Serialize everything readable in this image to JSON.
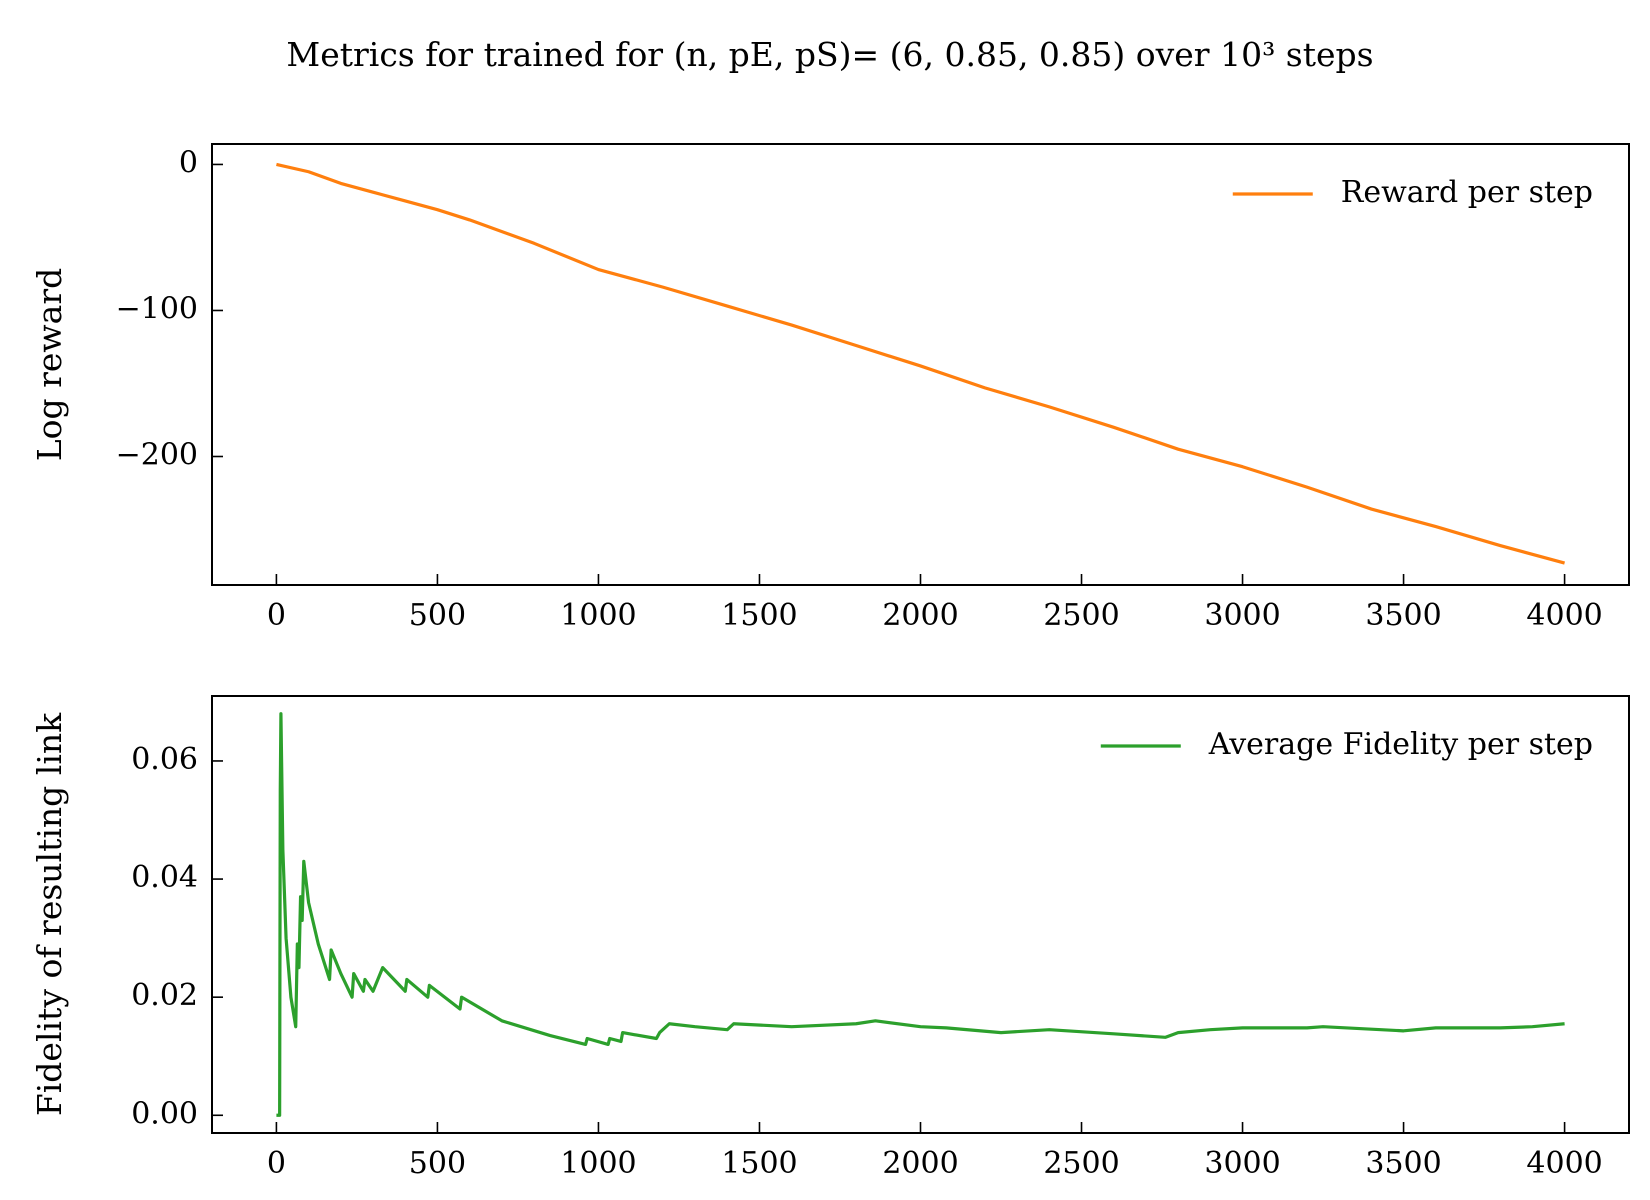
{
  "title": "Metrics for trained for (n, pE, pS)= (6, 0.85, 0.85) over 10³ steps",
  "chart_data": [
    {
      "type": "line",
      "ylabel": "Log reward",
      "legend": "upper right",
      "x": [
        0,
        100,
        200,
        300,
        400,
        500,
        600,
        800,
        1000,
        1200,
        1400,
        1600,
        1800,
        2000,
        2200,
        2400,
        2600,
        2800,
        3000,
        3200,
        3400,
        3600,
        3800,
        4000
      ],
      "series": [
        {
          "name": "Reward per step",
          "color": "#ff7f0e",
          "values": [
            0,
            -5,
            -13,
            -19,
            -25,
            -31,
            -38,
            -54,
            -72,
            -84,
            -97,
            -110,
            -124,
            -138,
            -153,
            -166,
            -180,
            -195,
            -207,
            -221,
            -236,
            -248,
            -261,
            -273
          ]
        }
      ],
      "xlim": [
        -200,
        4200
      ],
      "xticks": [
        0,
        500,
        1000,
        1500,
        2000,
        2500,
        3000,
        3500,
        4000
      ],
      "ylim": [
        -288,
        14
      ],
      "yticks": [
        {
          "value": 0,
          "label": "0"
        },
        {
          "value": -100,
          "label": "−100"
        },
        {
          "value": -200,
          "label": "−200"
        }
      ]
    },
    {
      "type": "line",
      "ylabel": "Fidelity of resulting link",
      "legend": "upper right",
      "x": [
        0,
        10,
        12,
        14,
        20,
        30,
        45,
        60,
        65,
        70,
        75,
        80,
        85,
        100,
        130,
        165,
        170,
        200,
        235,
        240,
        270,
        275,
        300,
        330,
        400,
        405,
        470,
        475,
        570,
        575,
        700,
        850,
        960,
        965,
        1030,
        1035,
        1070,
        1075,
        1180,
        1190,
        1220,
        1300,
        1400,
        1420,
        1600,
        1800,
        1860,
        2000,
        2080,
        2250,
        2400,
        2600,
        2760,
        2800,
        2900,
        3000,
        3100,
        3200,
        3250,
        3500,
        3600,
        3800,
        3900,
        4000
      ],
      "series": [
        {
          "name": "Average Fidelity per step",
          "color": "#2ca02c",
          "values": [
            0,
            0,
            0.055,
            0.068,
            0.045,
            0.03,
            0.02,
            0.015,
            0.029,
            0.025,
            0.037,
            0.033,
            0.043,
            0.036,
            0.029,
            0.023,
            0.028,
            0.024,
            0.02,
            0.024,
            0.021,
            0.023,
            0.021,
            0.025,
            0.021,
            0.023,
            0.02,
            0.022,
            0.018,
            0.02,
            0.016,
            0.0135,
            0.012,
            0.013,
            0.012,
            0.013,
            0.0125,
            0.014,
            0.013,
            0.014,
            0.0155,
            0.015,
            0.0145,
            0.0155,
            0.015,
            0.0155,
            0.016,
            0.015,
            0.0148,
            0.014,
            0.0145,
            0.0138,
            0.0132,
            0.014,
            0.0145,
            0.0148,
            0.0148,
            0.0148,
            0.015,
            0.0143,
            0.0148,
            0.0148,
            0.015,
            0.0155
          ]
        }
      ],
      "xlim": [
        -200,
        4200
      ],
      "xticks": [
        0,
        500,
        1000,
        1500,
        2000,
        2500,
        3000,
        3500,
        4000
      ],
      "ylim": [
        -0.003,
        0.071
      ],
      "yticks": [
        {
          "value": 0,
          "label": "0.00"
        },
        0.02,
        0.04,
        0.06
      ]
    }
  ]
}
